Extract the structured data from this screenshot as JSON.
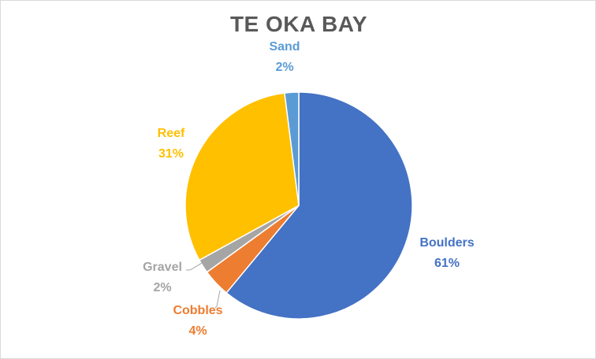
{
  "chart_data": {
    "type": "pie",
    "title": "TE OKA BAY",
    "slices": [
      {
        "name": "Boulders",
        "value": 61,
        "label": "61%",
        "color": "#4472C4"
      },
      {
        "name": "Cobbles",
        "value": 4,
        "label": "4%",
        "color": "#ED7D31"
      },
      {
        "name": "Gravel",
        "value": 2,
        "label": "2%",
        "color": "#A5A5A5"
      },
      {
        "name": "Reef",
        "value": 31,
        "label": "31%",
        "color": "#FFC000"
      },
      {
        "name": "Sand",
        "value": 2,
        "label": "2%",
        "color": "#5B9BD5"
      }
    ],
    "start_angle_deg": 0,
    "direction": "clockwise",
    "legend": "none",
    "data_labels": "outside"
  }
}
